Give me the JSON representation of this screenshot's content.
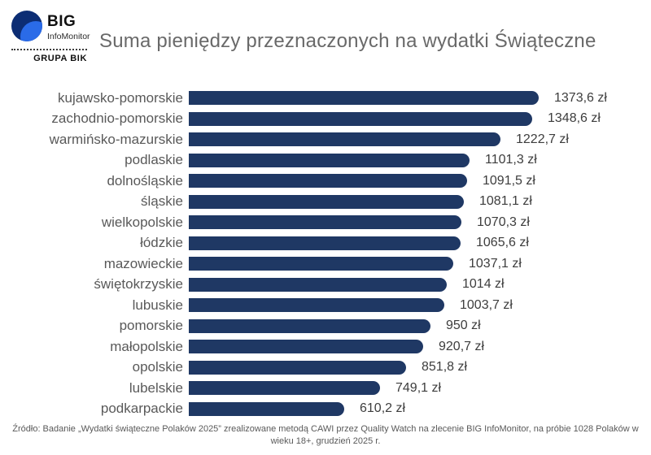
{
  "logo": {
    "brand": "BIG",
    "sub_brand": "InfoMonitor",
    "group": "GRUPA BIK"
  },
  "title": "Suma pieniędzy przeznaczonych na wydatki Świąteczne",
  "chart_data": {
    "type": "bar",
    "orientation": "horizontal",
    "title": "Suma pieniędzy przeznaczonych na wydatki Świąteczne",
    "unit": "zł",
    "bar_color": "#1f3864",
    "xlim": [
      0,
      1400
    ],
    "grid": false,
    "legend": false,
    "categories": [
      "kujawsko-pomorskie",
      "zachodnio-pomorskie",
      "warmińsko-mazurskie",
      "podlaskie",
      "dolnośląskie",
      "śląskie",
      "wielkopolskie",
      "łódzkie",
      "mazowieckie",
      "świętokrzyskie",
      "lubuskie",
      "pomorskie",
      "małopolskie",
      "opolskie",
      "lubelskie",
      "podkarpackie"
    ],
    "values": [
      1373.6,
      1348.6,
      1222.7,
      1101.3,
      1091.5,
      1081.1,
      1070.3,
      1065.6,
      1037.1,
      1014,
      1003.7,
      950,
      920.7,
      851.8,
      749.1,
      610.2
    ],
    "value_labels": [
      "1373,6 zł",
      "1348,6 zł",
      "1222,7 zł",
      "1101,3 zł",
      "1091,5 zł",
      "1081,1 zł",
      "1070,3 zł",
      "1065,6 zł",
      "1037,1 zł",
      "1014 zł",
      "1003,7 zł",
      "950 zł",
      "920,7 zł",
      "851,8 zł",
      "749,1 zł",
      "610,2 zł"
    ]
  },
  "footer": {
    "source": "Źródło: Badanie „Wydatki świąteczne Polaków 2025” zrealizowane metodą CAWI przez Quality Watch na zlecenie BIG InfoMonitor, na próbie 1028 Polaków w wieku 18+, grudzień 2025 r."
  }
}
